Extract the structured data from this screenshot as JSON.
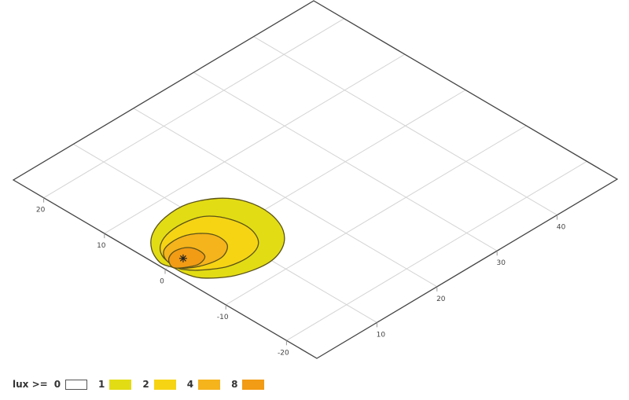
{
  "chart_data": {
    "type": "contour",
    "projection": "isometric",
    "xlim": [
      0,
      50
    ],
    "ylim": [
      -25,
      25
    ],
    "x_ticks": [
      10,
      20,
      30,
      40
    ],
    "y_ticks": [
      20,
      10,
      0,
      -10,
      -20
    ],
    "grid": true,
    "source_marker": {
      "x": 3,
      "y": 0,
      "symbol": "asterisk"
    },
    "legend": {
      "title": "lux >=",
      "placement": "bottom-left",
      "levels": [
        {
          "label": "0",
          "color": "#ffffff"
        },
        {
          "label": "1",
          "color": "#e2dc14"
        },
        {
          "label": "2",
          "color": "#f6d414"
        },
        {
          "label": "4",
          "color": "#f5b31c"
        },
        {
          "label": "8",
          "color": "#f29b14"
        }
      ]
    },
    "contours": [
      {
        "level": 1,
        "color": "#e2dc14",
        "points": [
          [
            0.9,
            -0.5
          ],
          [
            0.5,
            1.3
          ],
          [
            1.7,
            3.9
          ],
          [
            4.0,
            6.0
          ],
          [
            7.3,
            7.2
          ],
          [
            11.0,
            7.2
          ],
          [
            14.4,
            5.4
          ],
          [
            16.2,
            2.7
          ],
          [
            16.5,
            -0.9
          ],
          [
            15.2,
            -4.4
          ],
          [
            12.6,
            -6.8
          ],
          [
            9.1,
            -7.7
          ],
          [
            4.9,
            -6.7
          ],
          [
            1.9,
            -4.4
          ],
          [
            1.0,
            -2.2
          ]
        ]
      },
      {
        "level": 2,
        "color": "#f6d414",
        "points": [
          [
            1.2,
            -0.5
          ],
          [
            1.6,
            2.0
          ],
          [
            3.1,
            3.8
          ],
          [
            5.6,
            4.8
          ],
          [
            8.6,
            4.8
          ],
          [
            10.9,
            3.9
          ],
          [
            12.4,
            1.5
          ],
          [
            12.7,
            -1.5
          ],
          [
            11.4,
            -4.1
          ],
          [
            8.8,
            -5.2
          ],
          [
            5.5,
            -4.8
          ],
          [
            2.7,
            -3.0
          ],
          [
            1.5,
            -1.6
          ]
        ]
      },
      {
        "level": 4,
        "color": "#f5b31c",
        "points": [
          [
            1.2,
            -0.5
          ],
          [
            1.5,
            1.5
          ],
          [
            2.9,
            2.9
          ],
          [
            5.4,
            3.2
          ],
          [
            7.5,
            2.4
          ],
          [
            8.9,
            0.6
          ],
          [
            8.6,
            -1.7
          ],
          [
            6.6,
            -3.0
          ],
          [
            4.2,
            -2.8
          ],
          [
            2.0,
            -1.7
          ]
        ]
      },
      {
        "level": 8,
        "color": "#f29b14",
        "points": [
          [
            0.9,
            -0.5
          ],
          [
            1.6,
            1.0
          ],
          [
            3.1,
            1.7
          ],
          [
            4.7,
            1.3
          ],
          [
            5.4,
            0.1
          ],
          [
            5.1,
            -1.5
          ],
          [
            3.6,
            -2.1
          ],
          [
            2.2,
            -1.6
          ]
        ]
      }
    ]
  }
}
